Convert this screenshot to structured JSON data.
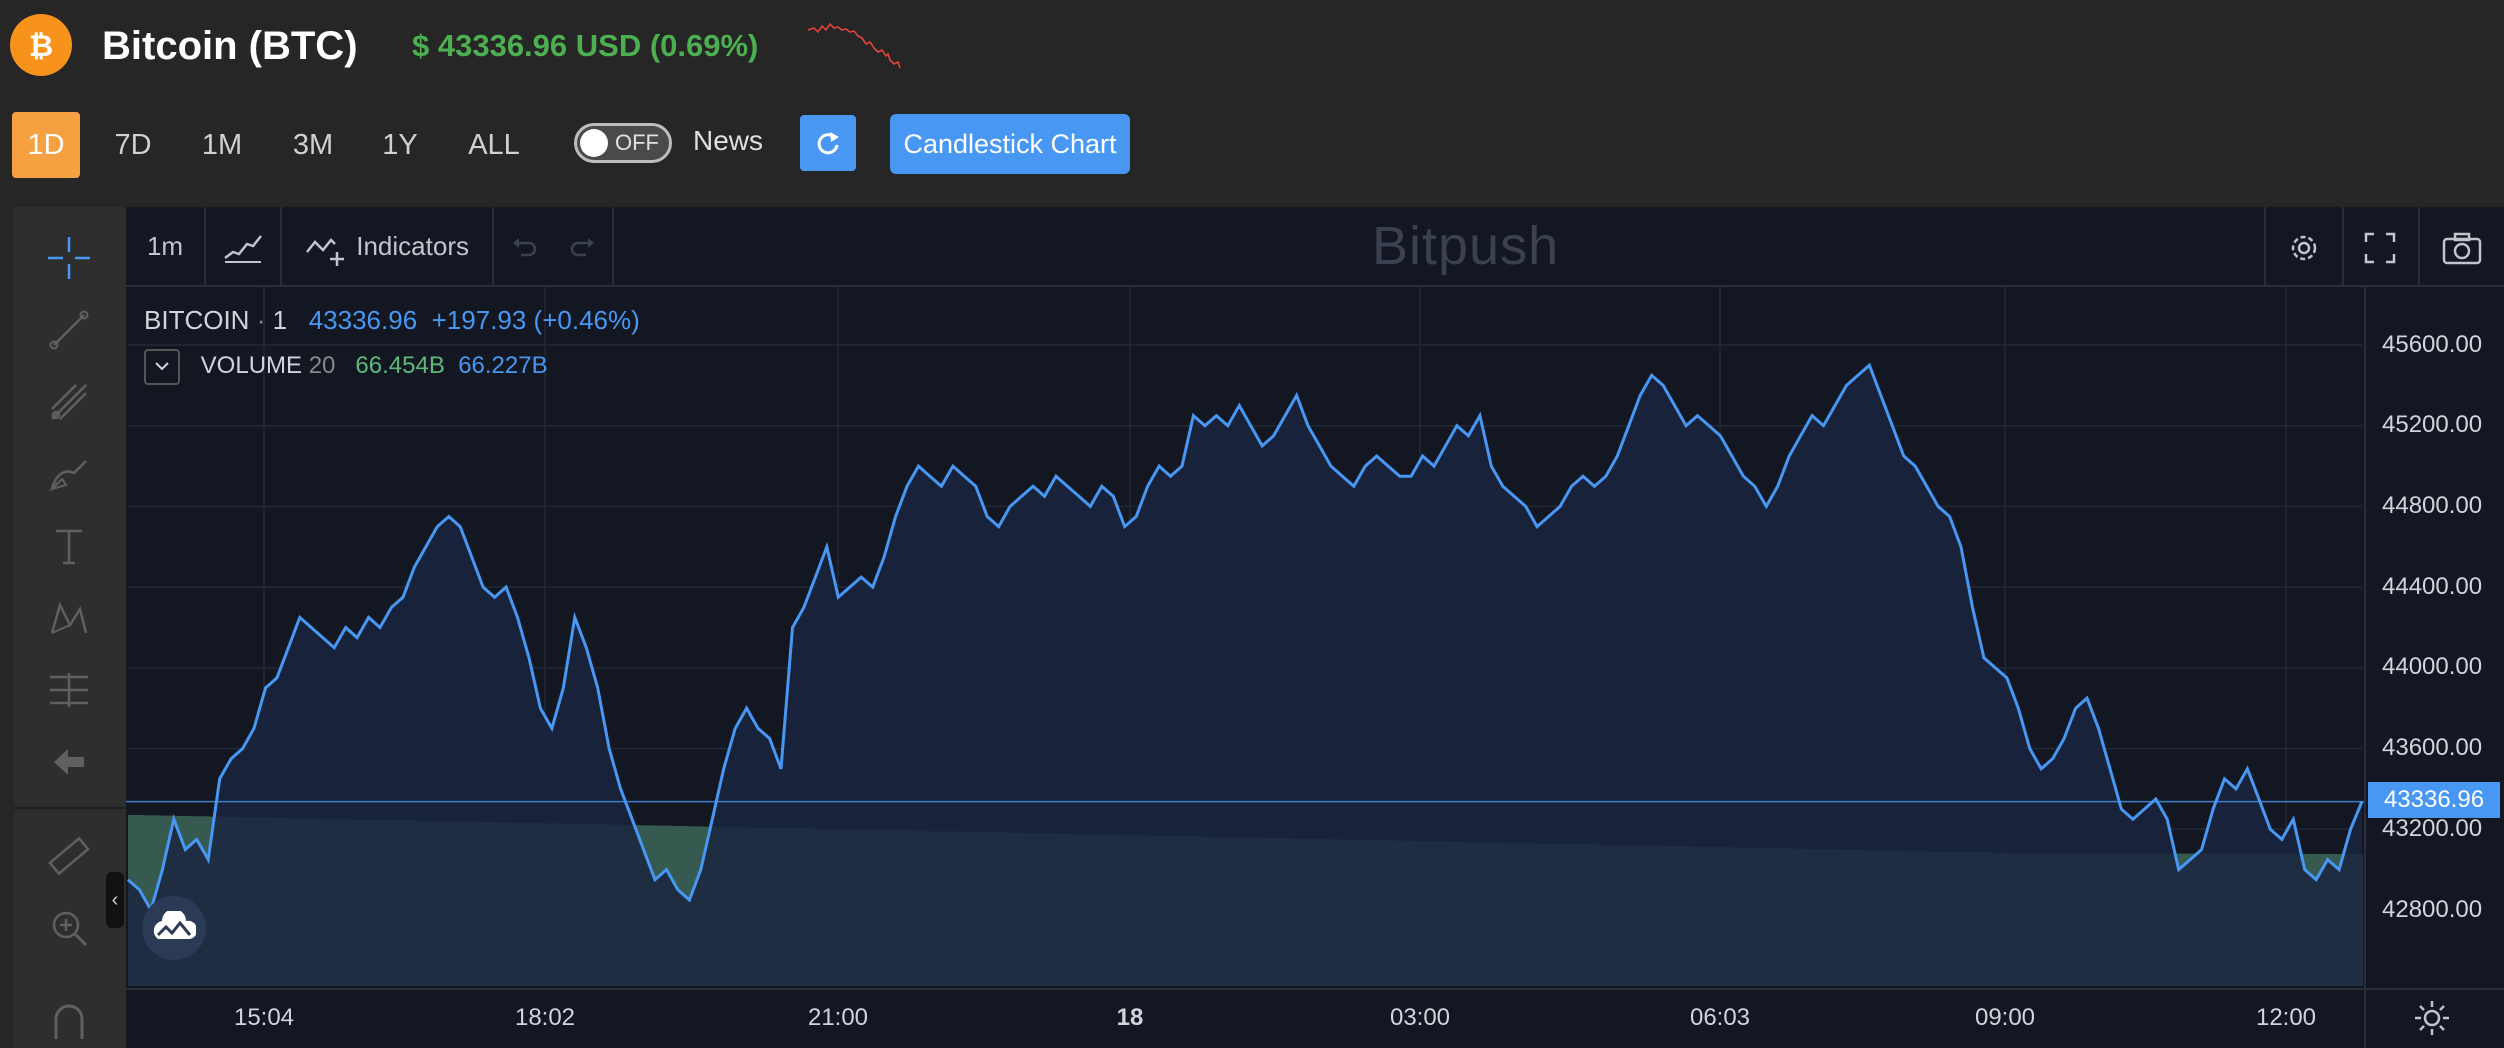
{
  "header": {
    "title": "Bitcoin (BTC)",
    "price": "$ 43336.96 USD (0.69%)",
    "icons": {
      "logo": "bitcoin-icon",
      "sparkline": "price-sparkline"
    }
  },
  "ranges": {
    "d1": "1D",
    "d7": "7D",
    "m1": "1M",
    "m3": "3M",
    "y1": "1Y",
    "all": "ALL",
    "selected": "1D"
  },
  "toggle": {
    "label": "OFF",
    "state": "off"
  },
  "news_label": "News",
  "candlestick_label": "Candlestick Chart",
  "toolbar": {
    "interval": "1m",
    "indicators": "Indicators"
  },
  "watermark": "Bitpush",
  "legend": {
    "symbol": "BITCOIN",
    "interval": "1",
    "last": "43336.96",
    "change": "+197.93 (+0.46%)",
    "volume_label": "VOLUME",
    "volume_period": "20",
    "volume_a": "66.454B",
    "volume_b": "66.227B"
  },
  "y_ticks": [
    "45600.00",
    "45200.00",
    "44800.00",
    "44400.00",
    "44000.00",
    "43600.00",
    "43200.00",
    "42800.00"
  ],
  "current_price_tag": "43336.96",
  "x_ticks": [
    "15:04",
    "18:02",
    "21:00",
    "18",
    "03:00",
    "06:03",
    "09:00",
    "12:00"
  ],
  "colors": {
    "accent": "#f5a142",
    "line": "#4797f3",
    "volume": "#375a50",
    "up": "#4caf50",
    "spark": "#e0443a"
  },
  "chart_data": {
    "type": "line",
    "ylim": [
      42500,
      45800
    ],
    "y": [
      42950,
      42900,
      42800,
      43000,
      43250,
      43100,
      43150,
      43050,
      43450,
      43550,
      43600,
      43700,
      43900,
      43950,
      44100,
      44250,
      44200,
      44150,
      44100,
      44200,
      44150,
      44250,
      44200,
      44300,
      44350,
      44500,
      44600,
      44700,
      44750,
      44700,
      44550,
      44400,
      44350,
      44400,
      44250,
      44050,
      43800,
      43700,
      43900,
      44250,
      44100,
      43900,
      43600,
      43400,
      43250,
      43100,
      42950,
      43000,
      42900,
      42850,
      43000,
      43250,
      43500,
      43700,
      43800,
      43700,
      43650,
      43500,
      44200,
      44300,
      44450,
      44600,
      44350,
      44400,
      44450,
      44400,
      44550,
      44750,
      44900,
      45000,
      44950,
      44900,
      45000,
      44950,
      44900,
      44750,
      44700,
      44800,
      44850,
      44900,
      44850,
      44950,
      44900,
      44850,
      44800,
      44900,
      44850,
      44700,
      44750,
      44900,
      45000,
      44950,
      45000,
      45250,
      45200,
      45250,
      45200,
      45300,
      45200,
      45100,
      45150,
      45250,
      45350,
      45200,
      45100,
      45000,
      44950,
      44900,
      45000,
      45050,
      45000,
      44950,
      44950,
      45050,
      45000,
      45100,
      45200,
      45150,
      45250,
      45000,
      44900,
      44850,
      44800,
      44700,
      44750,
      44800,
      44900,
      44950,
      44900,
      44950,
      45050,
      45200,
      45350,
      45450,
      45400,
      45300,
      45200,
      45250,
      45200,
      45150,
      45050,
      44950,
      44900,
      44800,
      44900,
      45050,
      45150,
      45250,
      45200,
      45300,
      45400,
      45450,
      45500,
      45350,
      45200,
      45050,
      45000,
      44900,
      44800,
      44750,
      44600,
      44300,
      44050,
      44000,
      43950,
      43800,
      43600,
      43500,
      43550,
      43650,
      43800,
      43850,
      43700,
      43500,
      43300,
      43250,
      43300,
      43350,
      43250,
      43000,
      43050,
      43100,
      43300,
      43450,
      43400,
      43500,
      43350,
      43200,
      43150,
      43250,
      43000,
      42950,
      43050,
      43000,
      43200,
      43336.96
    ]
  }
}
